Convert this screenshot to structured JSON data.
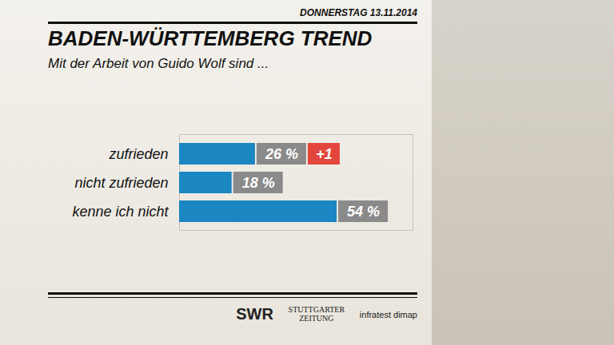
{
  "chart_data": {
    "type": "bar",
    "orientation": "horizontal",
    "date": "DONNERSTAG 13.11.2014",
    "title": "BADEN-WÜRTTEMBERG TREND",
    "subtitle": "Mit der Arbeit von Guido Wolf sind ...",
    "categories": [
      "zufrieden",
      "nicht zufrieden",
      "kenne ich nicht"
    ],
    "values": [
      26,
      18,
      54
    ],
    "value_labels": [
      "26 %",
      "18 %",
      "54 %"
    ],
    "data_labels": true,
    "annotations": [
      {
        "category": "zufrieden",
        "text": "+1"
      }
    ],
    "color": "#1a86c2",
    "xlim": [
      0,
      80
    ],
    "xticks": [],
    "tick_labels": "y",
    "grid": false,
    "sources": [
      "SWR",
      "STUTTGARTER ZEITUNG",
      "infratest dimap"
    ]
  }
}
